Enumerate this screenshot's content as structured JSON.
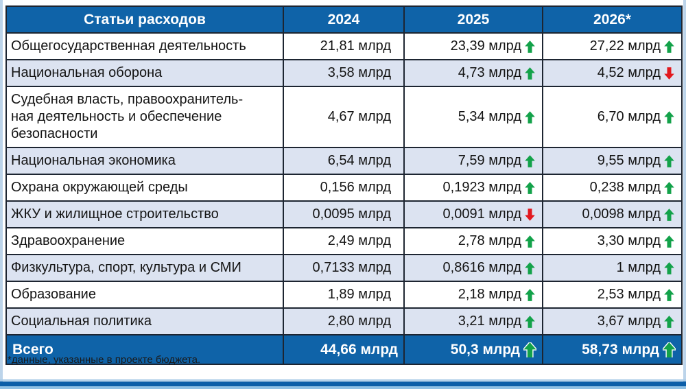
{
  "colors": {
    "header_bg": "#0f63a8",
    "alt_row": "#dce3f1",
    "arrow_up": "#13a24a",
    "arrow_down": "#e2191f",
    "border": "#1d2531",
    "bottom_bar": "#0b5ea8"
  },
  "table": {
    "header": [
      "Статьи расходов",
      "2024",
      "2025",
      "2026*"
    ],
    "rows": [
      {
        "name": "Общегосударственная деятельность",
        "cells": [
          {
            "text": "21,81 млрд",
            "arrow": null
          },
          {
            "text": "23,39 млрд",
            "arrow": "up"
          },
          {
            "text": "27,22 млрд",
            "arrow": "up"
          }
        ]
      },
      {
        "name": "Национальная оборона",
        "cells": [
          {
            "text": "3,58 млрд",
            "arrow": null
          },
          {
            "text": "4,73 млрд",
            "arrow": "up"
          },
          {
            "text": "4,52 млрд",
            "arrow": "down"
          }
        ]
      },
      {
        "name": "Судебная власть, правоохранитель-\nная деятельность и обеспечение\nбезопасности",
        "cells": [
          {
            "text": "4,67 млрд",
            "arrow": null
          },
          {
            "text": "5,34 млрд",
            "arrow": "up"
          },
          {
            "text": "6,70 млрд",
            "arrow": "up"
          }
        ]
      },
      {
        "name": "Национальная экономика",
        "cells": [
          {
            "text": "6,54 млрд",
            "arrow": null
          },
          {
            "text": "7,59 млрд",
            "arrow": "up"
          },
          {
            "text": "9,55 млрд",
            "arrow": "up"
          }
        ]
      },
      {
        "name": "Охрана окружающей среды",
        "cells": [
          {
            "text": "0,156 млрд",
            "arrow": null
          },
          {
            "text": "0,1923 млрд",
            "arrow": "up"
          },
          {
            "text": "0,238 млрд",
            "arrow": "up"
          }
        ]
      },
      {
        "name": "ЖКУ и жилищное строительство",
        "cells": [
          {
            "text": "0,0095 млрд",
            "arrow": null
          },
          {
            "text": "0,0091 млрд",
            "arrow": "down"
          },
          {
            "text": "0,0098 млрд",
            "arrow": "up"
          }
        ]
      },
      {
        "name": "Здравоохранение",
        "cells": [
          {
            "text": "2,49 млрд",
            "arrow": null
          },
          {
            "text": "2,78 млрд",
            "arrow": "up"
          },
          {
            "text": "3,30 млрд",
            "arrow": "up"
          }
        ]
      },
      {
        "name": "Физкультура, спорт, культура и СМИ",
        "cells": [
          {
            "text": "0,7133 млрд",
            "arrow": null
          },
          {
            "text": "0,8616 млрд",
            "arrow": "up"
          },
          {
            "text": "1 млрд",
            "arrow": "up"
          }
        ]
      },
      {
        "name": "Образование",
        "cells": [
          {
            "text": "1,89 млрд",
            "arrow": null
          },
          {
            "text": "2,18 млрд",
            "arrow": "up"
          },
          {
            "text": "2,53 млрд",
            "arrow": "up"
          }
        ]
      },
      {
        "name": "Социальная политика",
        "cells": [
          {
            "text": "2,80 млрд",
            "arrow": null
          },
          {
            "text": "3,21 млрд",
            "arrow": "up"
          },
          {
            "text": "3,67 млрд",
            "arrow": "up"
          }
        ]
      }
    ],
    "total": {
      "label": "Всего",
      "cells": [
        {
          "text": "44,66 млрд",
          "arrow": null
        },
        {
          "text": "50,3 млрд",
          "arrow": "up"
        },
        {
          "text": "58,73 млрд",
          "arrow": "up"
        }
      ]
    }
  },
  "footnote": "*данные, указанные в проекте бюджета.",
  "chart_data": {
    "type": "table",
    "title": "Статьи расходов",
    "columns": [
      "Статьи расходов",
      "2024",
      "2025",
      "2026*"
    ],
    "unit": "млрд",
    "footnote": "*данные, указанные в проекте бюджета.",
    "rows": [
      {
        "category": "Общегосударственная деятельность",
        "y2024": 21.81,
        "y2025": 23.39,
        "y2026": 27.22,
        "trend_2025": "up",
        "trend_2026": "up"
      },
      {
        "category": "Национальная оборона",
        "y2024": 3.58,
        "y2025": 4.73,
        "y2026": 4.52,
        "trend_2025": "up",
        "trend_2026": "down"
      },
      {
        "category": "Судебная власть, правоохранительная деятельность и обеспечение безопасности",
        "y2024": 4.67,
        "y2025": 5.34,
        "y2026": 6.7,
        "trend_2025": "up",
        "trend_2026": "up"
      },
      {
        "category": "Национальная экономика",
        "y2024": 6.54,
        "y2025": 7.59,
        "y2026": 9.55,
        "trend_2025": "up",
        "trend_2026": "up"
      },
      {
        "category": "Охрана окружающей среды",
        "y2024": 0.156,
        "y2025": 0.1923,
        "y2026": 0.238,
        "trend_2025": "up",
        "trend_2026": "up"
      },
      {
        "category": "ЖКУ и жилищное строительство",
        "y2024": 0.0095,
        "y2025": 0.0091,
        "y2026": 0.0098,
        "trend_2025": "down",
        "trend_2026": "up"
      },
      {
        "category": "Здравоохранение",
        "y2024": 2.49,
        "y2025": 2.78,
        "y2026": 3.3,
        "trend_2025": "up",
        "trend_2026": "up"
      },
      {
        "category": "Физкультура, спорт, культура и СМИ",
        "y2024": 0.7133,
        "y2025": 0.8616,
        "y2026": 1,
        "trend_2025": "up",
        "trend_2026": "up"
      },
      {
        "category": "Образование",
        "y2024": 1.89,
        "y2025": 2.18,
        "y2026": 2.53,
        "trend_2025": "up",
        "trend_2026": "up"
      },
      {
        "category": "Социальная политика",
        "y2024": 2.8,
        "y2025": 3.21,
        "y2026": 3.67,
        "trend_2025": "up",
        "trend_2026": "up"
      },
      {
        "category": "Всего",
        "y2024": 44.66,
        "y2025": 50.3,
        "y2026": 58.73,
        "trend_2025": "up",
        "trend_2026": "up"
      }
    ]
  }
}
